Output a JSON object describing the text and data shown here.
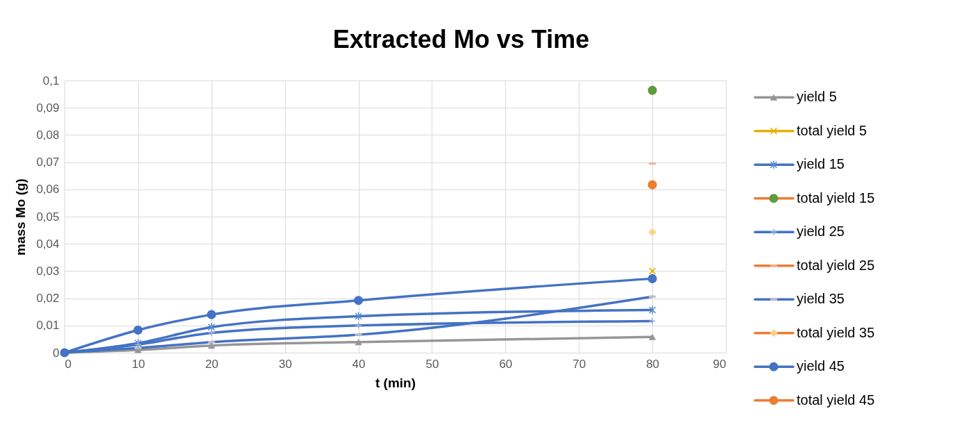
{
  "chart_data": {
    "type": "line",
    "title": "Extracted Mo vs Time",
    "xlabel": "t (min)",
    "ylabel": "mass Mo (g)",
    "xlim": [
      0,
      90
    ],
    "xticks": [
      0,
      10,
      20,
      30,
      40,
      50,
      60,
      70,
      80,
      90
    ],
    "ylim": [
      0,
      0.1
    ],
    "yticks": [
      0,
      {
        "value": 0.01,
        "label": "0,01"
      },
      {
        "value": 0.02,
        "label": "0,02"
      },
      {
        "value": 0.03,
        "label": "0,03"
      },
      {
        "value": 0.04,
        "label": "0,04"
      },
      {
        "value": 0.05,
        "label": "0,05"
      },
      {
        "value": 0.06,
        "label": "0,06"
      },
      {
        "value": 0.07,
        "label": "0,07"
      },
      {
        "value": 0.08,
        "label": "0,08"
      },
      {
        "value": 0.09,
        "label": "0,09"
      },
      {
        "value": 0.1,
        "label": "0,1"
      }
    ],
    "grid": true,
    "legend": "right",
    "line_style": "solid",
    "series": [
      {
        "name": "yield 5",
        "color": "#969696",
        "colors": [
          "#969696",
          "#969696",
          "#969696",
          "#969696",
          "#969696"
        ],
        "marker": "triangle",
        "x": [
          0,
          10,
          20,
          40,
          80
        ],
        "values": [
          0,
          0.001,
          0.0026,
          0.0039,
          0.0058
        ]
      },
      {
        "name": "total yield 5",
        "color": "#e6b000",
        "colors": [
          "#e6b000"
        ],
        "marker": "cross",
        "x": [
          80
        ],
        "values": [
          0.03
        ]
      },
      {
        "name": "yield 15",
        "color": "#4472c4",
        "colors": [
          "#5b8fd0",
          "#5b8fd0",
          "#5b8fd0",
          "#5b8fd0",
          "#5b8fd0"
        ],
        "marker": "cross",
        "x": [
          0,
          10,
          20,
          40,
          80
        ],
        "values": [
          0,
          0.0035,
          0.0094,
          0.0134,
          0.0157
        ]
      },
      {
        "name": "total yield 15",
        "color": "#ed7d31",
        "colors": [
          "#5f9a3c"
        ],
        "marker": "circle",
        "x": [
          80
        ],
        "values": [
          0.0964
        ]
      },
      {
        "name": "yield 25",
        "color": "#4472c4",
        "colors": [
          "#9db4e0",
          "#9db4e0",
          "#9db4e0",
          "#9db4e0",
          "#9db4e0"
        ],
        "marker": "cross",
        "x": [
          0,
          10,
          20,
          40,
          80
        ],
        "values": [
          0,
          0.003,
          0.0073,
          0.01,
          0.0116
        ]
      },
      {
        "name": "total yield 25",
        "color": "#ed7d31",
        "colors": [
          "#f4b09a"
        ],
        "marker": "square",
        "x": [
          80
        ],
        "values": [
          0.0695
        ]
      },
      {
        "name": "yield 35",
        "color": "#4472c4",
        "colors": [
          "#c0c0c0",
          "#c0c0c0",
          "#c0c0c0",
          "#c0c0c0",
          "#c0c0c0"
        ],
        "marker": "square",
        "x": [
          0,
          10,
          20,
          40,
          80
        ],
        "values": [
          0,
          0.0017,
          0.0039,
          0.0066,
          0.0206
        ]
      },
      {
        "name": "total yield 35",
        "color": "#ed7d31",
        "colors": [
          "#ffd28a"
        ],
        "marker": "diamond",
        "x": [
          80
        ],
        "values": [
          0.0443
        ]
      },
      {
        "name": "yield 45",
        "color": "#4472c4",
        "colors": [
          "#4472c4",
          "#4472c4",
          "#4472c4",
          "#4472c4",
          "#4472c4"
        ],
        "marker": "circle",
        "x": [
          0,
          10,
          20,
          40,
          80
        ],
        "values": [
          0,
          0.0083,
          0.014,
          0.0192,
          0.0272
        ]
      },
      {
        "name": "total yield 45",
        "color": "#ed7d31",
        "colors": [
          "#ed7d31"
        ],
        "marker": "circle",
        "x": [
          80
        ],
        "values": [
          0.0617
        ]
      }
    ]
  }
}
